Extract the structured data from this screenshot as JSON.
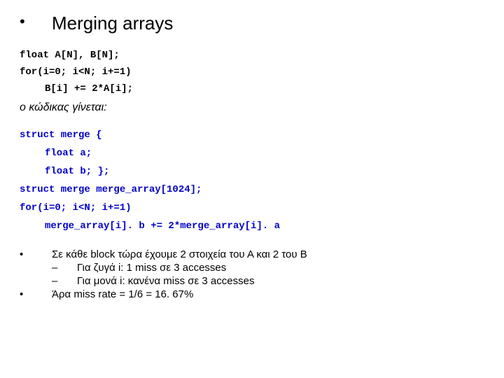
{
  "title": {
    "bullet": "•",
    "text": "Merging arrays"
  },
  "code1": {
    "l1": "float A[N], B[N];",
    "l2": "for(i=0; i<N; i+=1)",
    "l3": "B[i] += 2*A[i];"
  },
  "transition": "ο κώδικας γίνεται:",
  "code2": {
    "l1": "struct merge {",
    "l2": "float a;",
    "l3": "float b; };",
    "l4": "struct merge merge_array[1024];",
    "l5": "for(i=0; i<N; i+=1)",
    "l6": "merge_array[i]. b += 2*merge_array[i]. a"
  },
  "bottom": {
    "b1": "•",
    "t1": "Σε κάθε block τώρα έχουμε 2 στοιχεία του Α και 2 του Β",
    "dash": "–",
    "t2": "Για ζυγά i: 1 miss σε 3 accesses",
    "t3": "Για μονά i: κανένα miss σε 3 accesses",
    "b2": "•",
    "t4": "Άρα miss rate = 1/6 = 16. 67%"
  }
}
